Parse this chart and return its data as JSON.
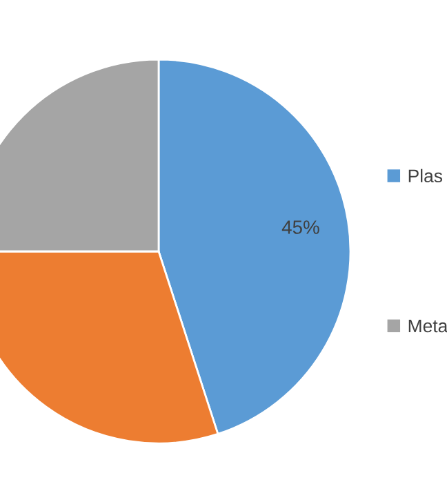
{
  "chart_data": {
    "type": "pie",
    "categories": [
      "Plas",
      null,
      "Meta"
    ],
    "values": [
      45,
      30,
      25
    ],
    "colors": [
      "#5b9bd5",
      "#ed7d31",
      "#a5a5a5"
    ],
    "value_labels": [
      "45%",
      null,
      null
    ],
    "legend": "right"
  }
}
